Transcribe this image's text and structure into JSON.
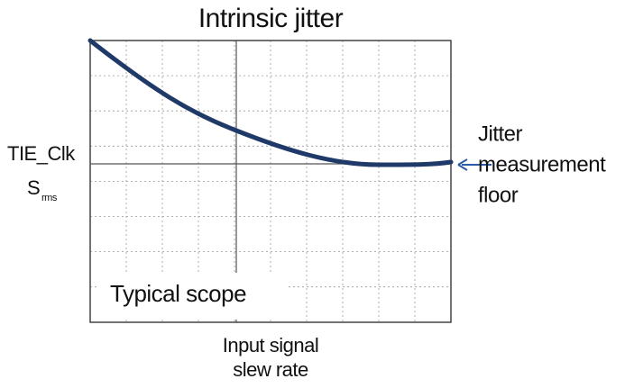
{
  "title": "Intrinsic jitter",
  "y_label": {
    "main": "TIE_Clk",
    "second": "S",
    "subscript": "rms"
  },
  "annotation": {
    "lines": [
      "Jitter",
      "measurement",
      "floor"
    ]
  },
  "box_label": "Typical scope",
  "x_label": {
    "lines": [
      "Input signal",
      "slew rate"
    ]
  }
}
